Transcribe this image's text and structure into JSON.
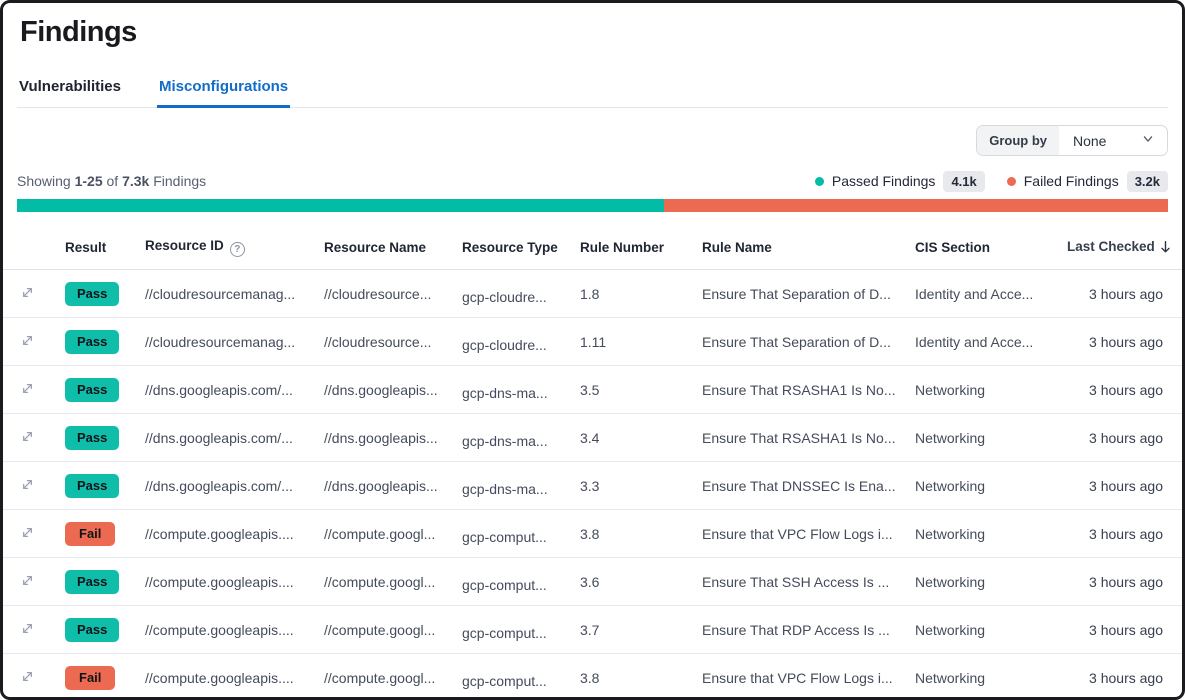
{
  "page": {
    "title": "Findings"
  },
  "tabs": [
    {
      "label": "Vulnerabilities",
      "active": false
    },
    {
      "label": "Misconfigurations",
      "active": true
    }
  ],
  "toolbar": {
    "group_by_label": "Group by",
    "group_by_value": "None"
  },
  "status": {
    "showing_prefix": "Showing",
    "range": "1-25",
    "of_word": "of",
    "total": "7.3k",
    "suffix": "Findings"
  },
  "legend": {
    "passed_label": "Passed Findings",
    "passed_count": "4.1k",
    "failed_label": "Failed Findings",
    "failed_count": "3.2k"
  },
  "progress": {
    "passed_percent": 56.2,
    "failed_percent": 43.8
  },
  "colors": {
    "passed": "#03bca6",
    "failed": "#ec6a51",
    "tab_active": "#116dc9"
  },
  "table": {
    "columns": [
      "Result",
      "Resource ID",
      "Resource Name",
      "Resource Type",
      "Rule Number",
      "Rule Name",
      "CIS Section",
      "Last Checked"
    ],
    "rows": [
      {
        "result": "Pass",
        "resource_id": "//cloudresourcemanag...",
        "resource_name": "//cloudresource...",
        "resource_type": "gcp-cloudre...",
        "rule_number": "1.8",
        "rule_name": "Ensure That Separation of D...",
        "cis_section": "Identity and Acce...",
        "last_checked": "3 hours ago"
      },
      {
        "result": "Pass",
        "resource_id": "//cloudresourcemanag...",
        "resource_name": "//cloudresource...",
        "resource_type": "gcp-cloudre...",
        "rule_number": "1.11",
        "rule_name": "Ensure That Separation of D...",
        "cis_section": "Identity and Acce...",
        "last_checked": "3 hours ago"
      },
      {
        "result": "Pass",
        "resource_id": "//dns.googleapis.com/...",
        "resource_name": "//dns.googleapis...",
        "resource_type": "gcp-dns-ma...",
        "rule_number": "3.5",
        "rule_name": "Ensure That RSASHA1 Is No...",
        "cis_section": "Networking",
        "last_checked": "3 hours ago"
      },
      {
        "result": "Pass",
        "resource_id": "//dns.googleapis.com/...",
        "resource_name": "//dns.googleapis...",
        "resource_type": "gcp-dns-ma...",
        "rule_number": "3.4",
        "rule_name": "Ensure That RSASHA1 Is No...",
        "cis_section": "Networking",
        "last_checked": "3 hours ago"
      },
      {
        "result": "Pass",
        "resource_id": "//dns.googleapis.com/...",
        "resource_name": "//dns.googleapis...",
        "resource_type": "gcp-dns-ma...",
        "rule_number": "3.3",
        "rule_name": "Ensure That DNSSEC Is Ena...",
        "cis_section": "Networking",
        "last_checked": "3 hours ago"
      },
      {
        "result": "Fail",
        "resource_id": "//compute.googleapis....",
        "resource_name": "//compute.googl...",
        "resource_type": "gcp-comput...",
        "rule_number": "3.8",
        "rule_name": "Ensure that VPC Flow Logs i...",
        "cis_section": "Networking",
        "last_checked": "3 hours ago"
      },
      {
        "result": "Pass",
        "resource_id": "//compute.googleapis....",
        "resource_name": "//compute.googl...",
        "resource_type": "gcp-comput...",
        "rule_number": "3.6",
        "rule_name": "Ensure That SSH Access Is ...",
        "cis_section": "Networking",
        "last_checked": "3 hours ago"
      },
      {
        "result": "Pass",
        "resource_id": "//compute.googleapis....",
        "resource_name": "//compute.googl...",
        "resource_type": "gcp-comput...",
        "rule_number": "3.7",
        "rule_name": "Ensure That RDP Access Is ...",
        "cis_section": "Networking",
        "last_checked": "3 hours ago"
      },
      {
        "result": "Fail",
        "resource_id": "//compute.googleapis....",
        "resource_name": "//compute.googl...",
        "resource_type": "gcp-comput...",
        "rule_number": "3.8",
        "rule_name": "Ensure that VPC Flow Logs i...",
        "cis_section": "Networking",
        "last_checked": "3 hours ago"
      }
    ]
  }
}
